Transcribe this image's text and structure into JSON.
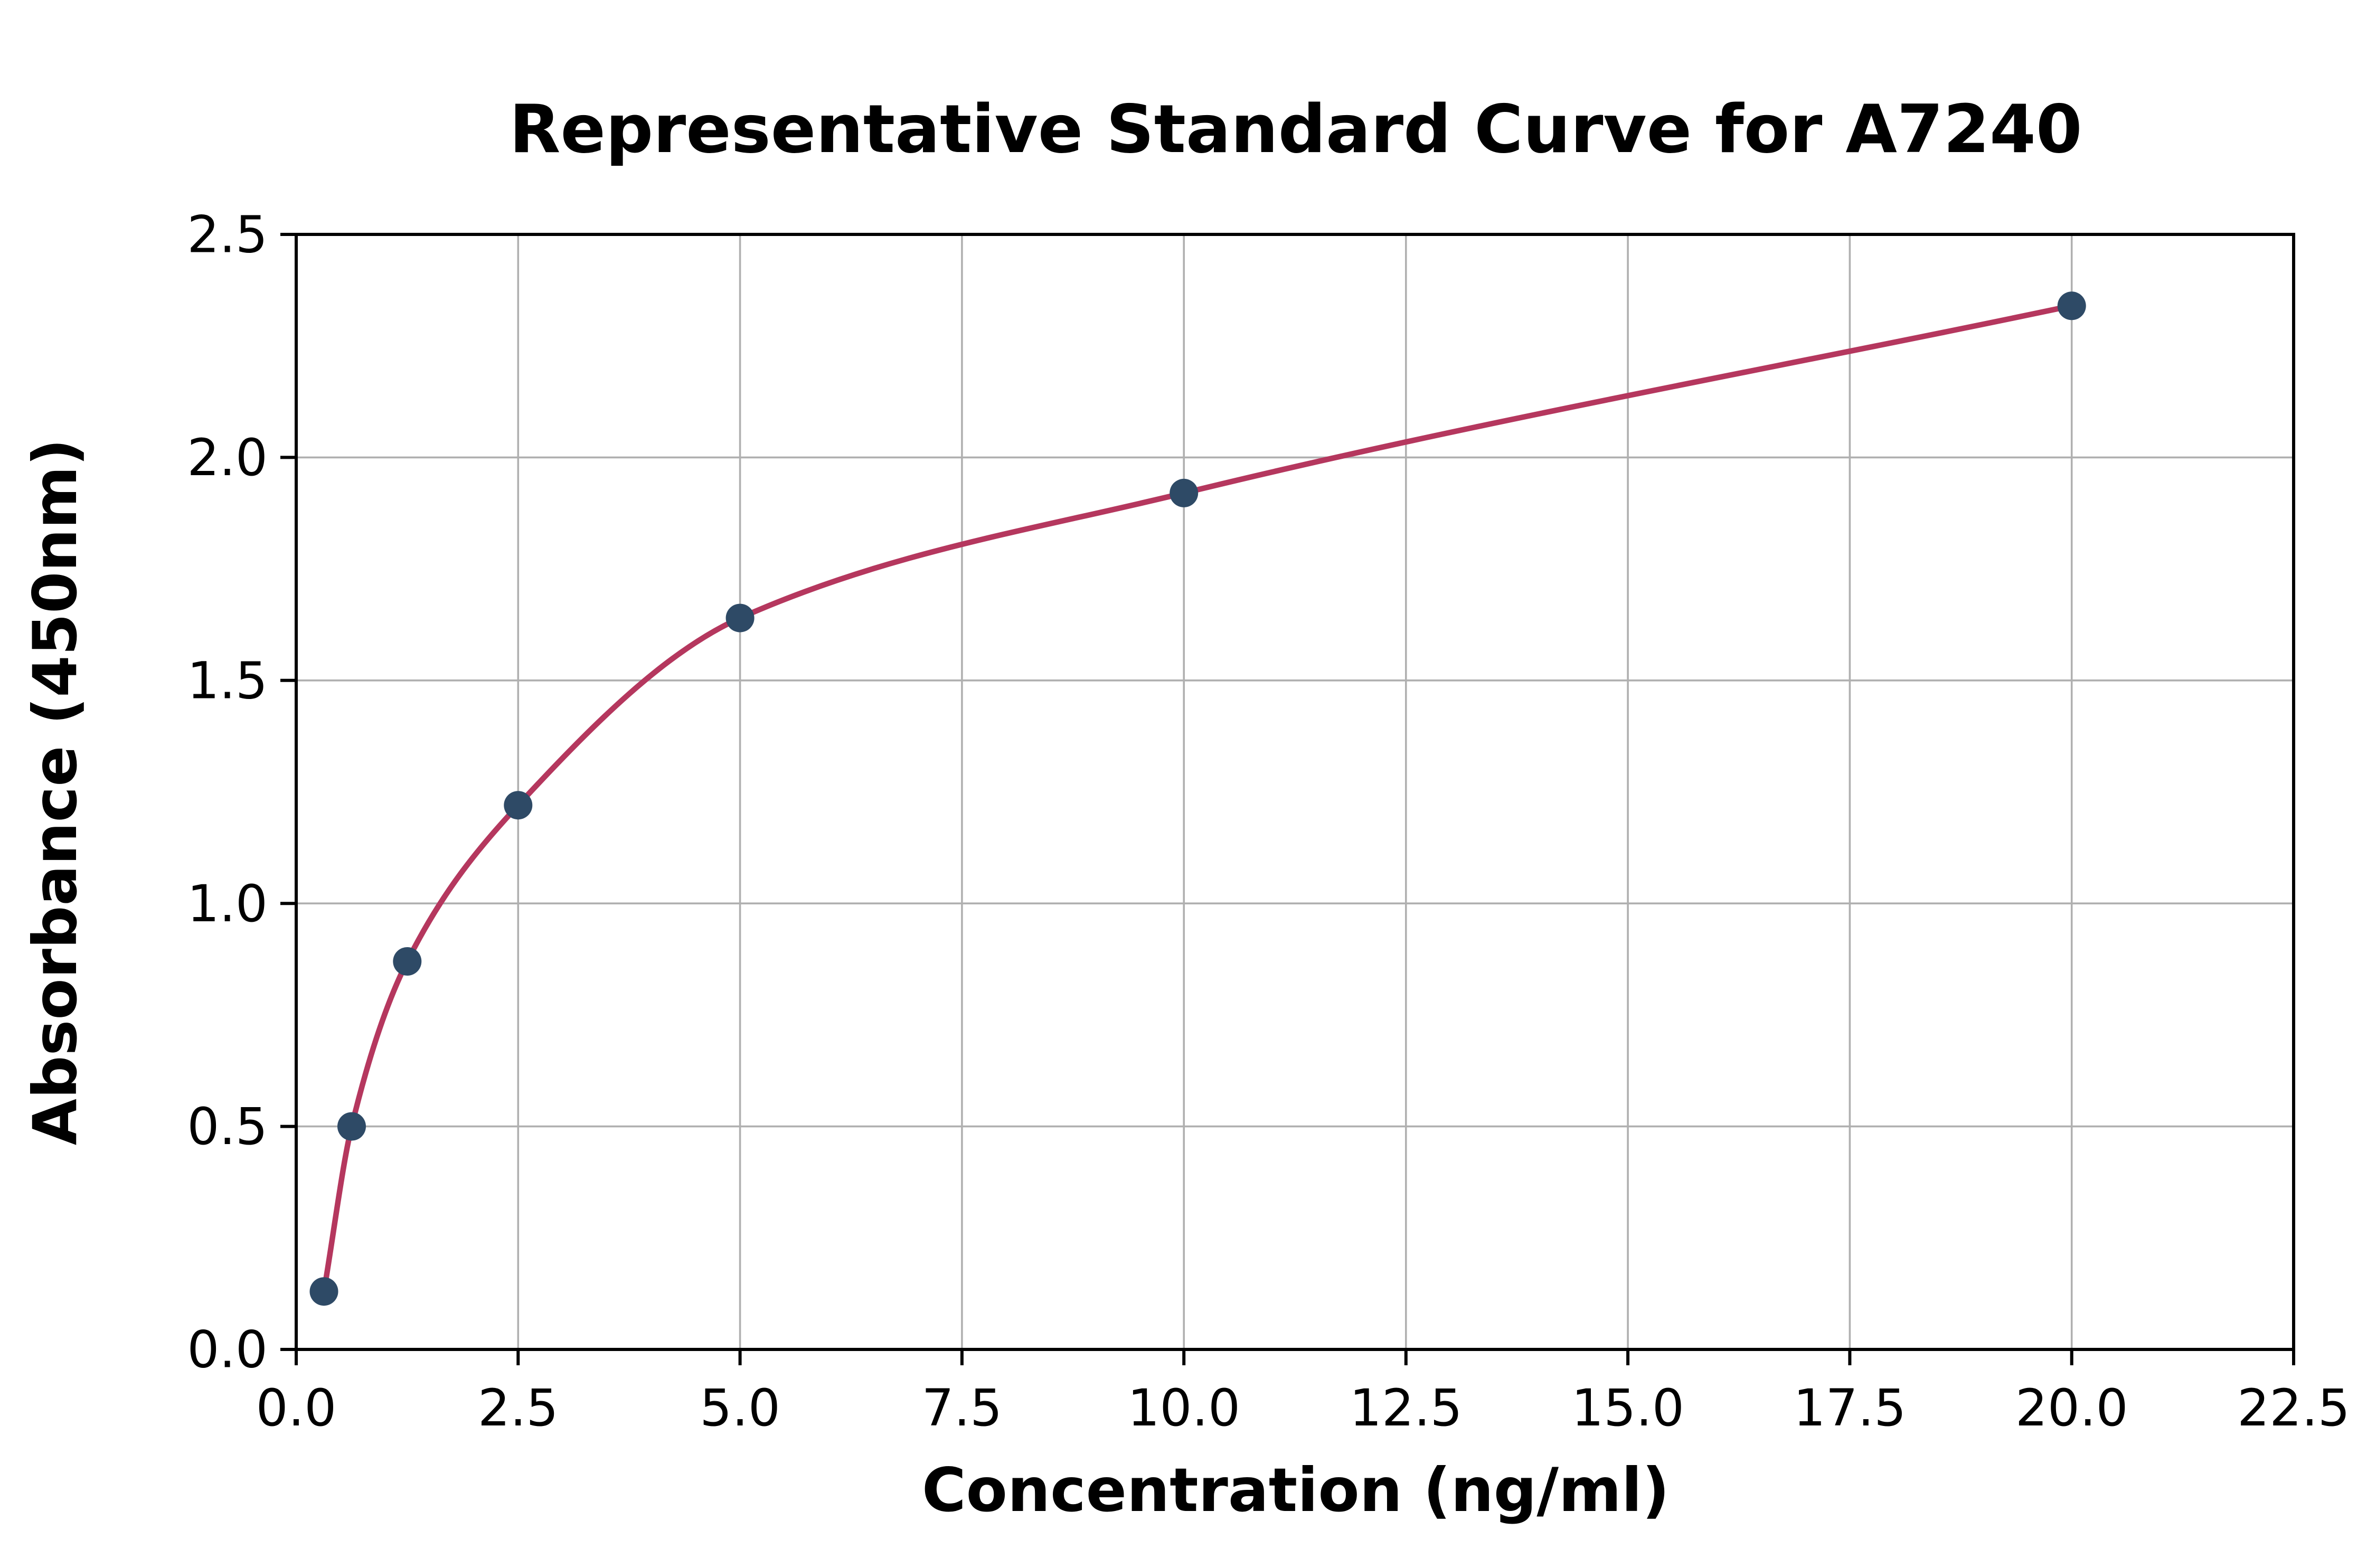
{
  "chart_data": {
    "type": "scatter",
    "title": "Representative Standard Curve for A7240",
    "xlabel": "Concentration (ng/ml)",
    "ylabel": "Absorbance (450nm)",
    "xlim": [
      0,
      22.5
    ],
    "ylim": [
      0,
      2.5
    ],
    "xticks": [
      0.0,
      2.5,
      5.0,
      7.5,
      10.0,
      12.5,
      15.0,
      17.5,
      20.0,
      22.5
    ],
    "xtick_labels": [
      "0.0",
      "2.5",
      "5.0",
      "7.5",
      "10.0",
      "12.5",
      "15.0",
      "17.5",
      "20.0",
      "22.5"
    ],
    "yticks": [
      0.0,
      0.5,
      1.0,
      1.5,
      2.0,
      2.5
    ],
    "ytick_labels": [
      "0.0",
      "0.5",
      "1.0",
      "1.5",
      "2.0",
      "2.5"
    ],
    "grid": true,
    "legend": "none",
    "series": [
      {
        "name": "standard-points",
        "style": "scatter",
        "x": [
          0.3125,
          0.625,
          1.25,
          2.5,
          5.0,
          10.0,
          20.0
        ],
        "y": [
          0.13,
          0.5,
          0.87,
          1.22,
          1.64,
          1.92,
          2.34
        ]
      },
      {
        "name": "fitted-curve",
        "style": "smooth-line-through-points",
        "x": [
          0.3125,
          0.625,
          1.25,
          2.5,
          5.0,
          10.0,
          20.0
        ],
        "y": [
          0.13,
          0.5,
          0.87,
          1.22,
          1.64,
          1.92,
          2.34
        ]
      }
    ],
    "colors": {
      "point": "#2e4a66",
      "curve": "#b5375e",
      "grid": "#b0b0b0",
      "axis": "#000000",
      "background": "#ffffff"
    }
  }
}
